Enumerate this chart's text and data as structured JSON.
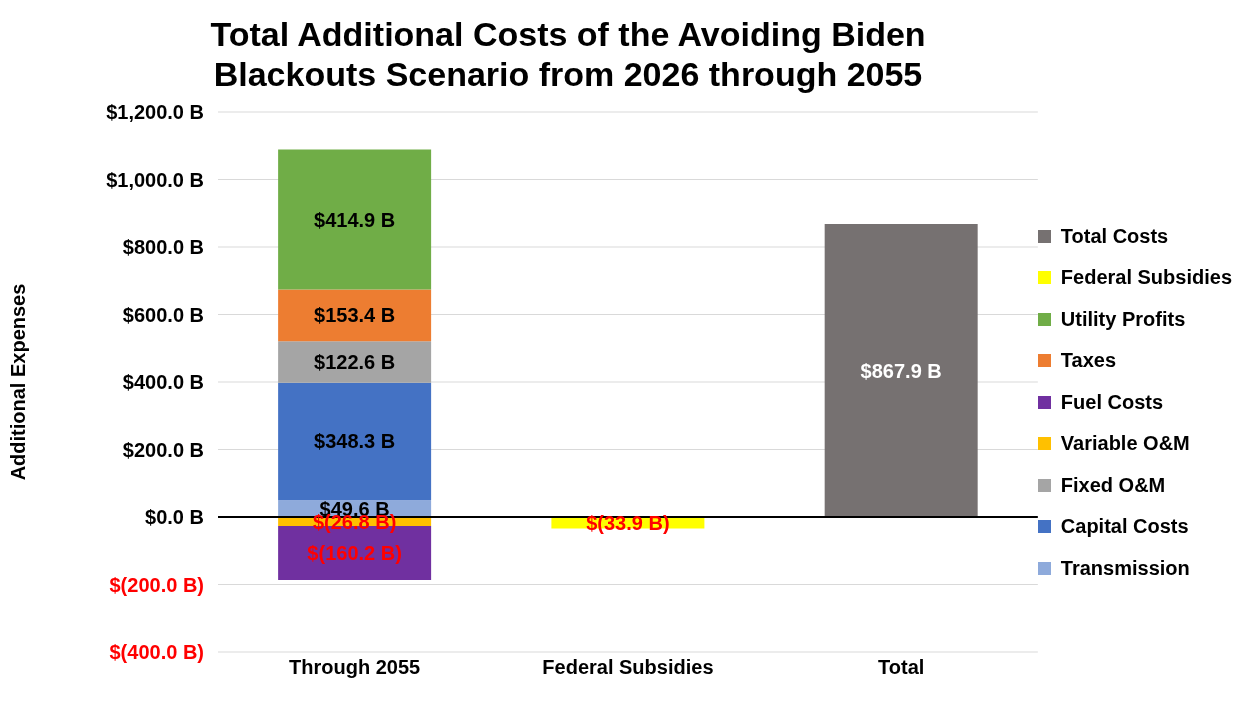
{
  "chart_data": {
    "type": "bar",
    "title": "Total Additional Costs of the Avoiding Biden Blackouts Scenario from 2026 through 2055",
    "ylabel": "Additional Expenses",
    "categories": [
      "Through 2055",
      "Federal Subsidies",
      "Total"
    ],
    "stacked": true,
    "legend": "right",
    "grid": "y",
    "ylim": [
      -400,
      1200
    ],
    "yticks": [
      {
        "value": -400,
        "label": "$(400.0 B)"
      },
      {
        "value": -200,
        "label": "$(200.0 B)"
      },
      {
        "value": 0,
        "label": "$0.0 B"
      },
      {
        "value": 200,
        "label": "$200.0 B"
      },
      {
        "value": 400,
        "label": "$400.0 B"
      },
      {
        "value": 600,
        "label": "$600.0 B"
      },
      {
        "value": 800,
        "label": "$800.0 B"
      },
      {
        "value": 1000,
        "label": "$1,000.0 B"
      },
      {
        "value": 1200,
        "label": "$1,200.0 B"
      }
    ],
    "ref_lines": [
      {
        "axis": "y",
        "value": 0,
        "color": "#000000"
      }
    ],
    "series": [
      {
        "name": "Transmission",
        "color": "#8eaadb",
        "values": [
          49.6,
          null,
          null
        ],
        "value_labels": [
          "$49.6 B",
          null,
          null
        ]
      },
      {
        "name": "Capital Costs",
        "color": "#4472c4",
        "values": [
          348.3,
          null,
          null
        ],
        "value_labels": [
          "$348.3 B",
          null,
          null
        ]
      },
      {
        "name": "Fixed O&M",
        "color": "#a5a5a5",
        "values": [
          122.6,
          null,
          null
        ],
        "value_labels": [
          "$122.6 B",
          null,
          null
        ]
      },
      {
        "name": "Variable O&M",
        "color": "#ffc000",
        "values": [
          -26.8,
          null,
          null
        ],
        "value_labels": [
          "$(26.8 B)",
          null,
          null
        ]
      },
      {
        "name": "Fuel Costs",
        "color": "#7030a0",
        "values": [
          -160.2,
          null,
          null
        ],
        "value_labels": [
          "$(160.2 B)",
          null,
          null
        ]
      },
      {
        "name": "Taxes",
        "color": "#ed7d31",
        "values": [
          153.4,
          null,
          null
        ],
        "value_labels": [
          "$153.4 B",
          null,
          null
        ]
      },
      {
        "name": "Utility Profits",
        "color": "#70ad47",
        "values": [
          414.9,
          null,
          null
        ],
        "value_labels": [
          "$414.9 B",
          null,
          null
        ]
      },
      {
        "name": "Federal Subsidies",
        "color": "#ffff00",
        "values": [
          null,
          -33.9,
          null
        ],
        "value_labels": [
          null,
          "$(33.9 B)",
          null
        ]
      },
      {
        "name": "Total Costs",
        "color": "#767171",
        "values": [
          null,
          null,
          867.9
        ],
        "value_labels": [
          null,
          null,
          "$867.9 B"
        ]
      }
    ]
  }
}
